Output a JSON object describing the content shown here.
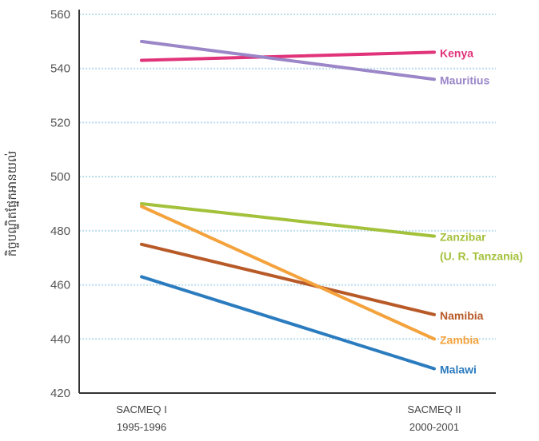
{
  "chart_data": {
    "type": "line",
    "title": "",
    "xlabel": "",
    "ylabel": "កិច្ចបណ្ឌិតផ្នែកអានយល់",
    "categories": [
      [
        "SACMEQ I",
        "1995-1996"
      ],
      [
        "SACMEQ II",
        "2000-2001"
      ]
    ],
    "ylim": [
      420,
      560
    ],
    "yticks": [
      420,
      440,
      460,
      480,
      500,
      520,
      540,
      560
    ],
    "grid": true,
    "legend": "inline-right",
    "series": [
      {
        "name": "Kenya",
        "label_lines": [
          "Kenya"
        ],
        "values": [
          543,
          546
        ],
        "color": "#e0337a"
      },
      {
        "name": "Mauritius",
        "label_lines": [
          "Mauritius"
        ],
        "values": [
          550,
          536
        ],
        "color": "#9b86c8"
      },
      {
        "name": "Zanzibar (U. R. Tanzania)",
        "label_lines": [
          "Zanzibar",
          "(U. R. Tanzania)"
        ],
        "values": [
          490,
          478
        ],
        "color": "#a3c13a"
      },
      {
        "name": "Namibia",
        "label_lines": [
          "Namibia"
        ],
        "values": [
          475,
          449
        ],
        "color": "#b85a28"
      },
      {
        "name": "Zambia",
        "label_lines": [
          "Zambia"
        ],
        "values": [
          489,
          440
        ],
        "color": "#f4a23c"
      },
      {
        "name": "Malawi",
        "label_lines": [
          "Malawi"
        ],
        "values": [
          463,
          429
        ],
        "color": "#2b7bbf"
      }
    ],
    "colors": {
      "grid": "#b9dcef",
      "axis": "#333333"
    }
  }
}
